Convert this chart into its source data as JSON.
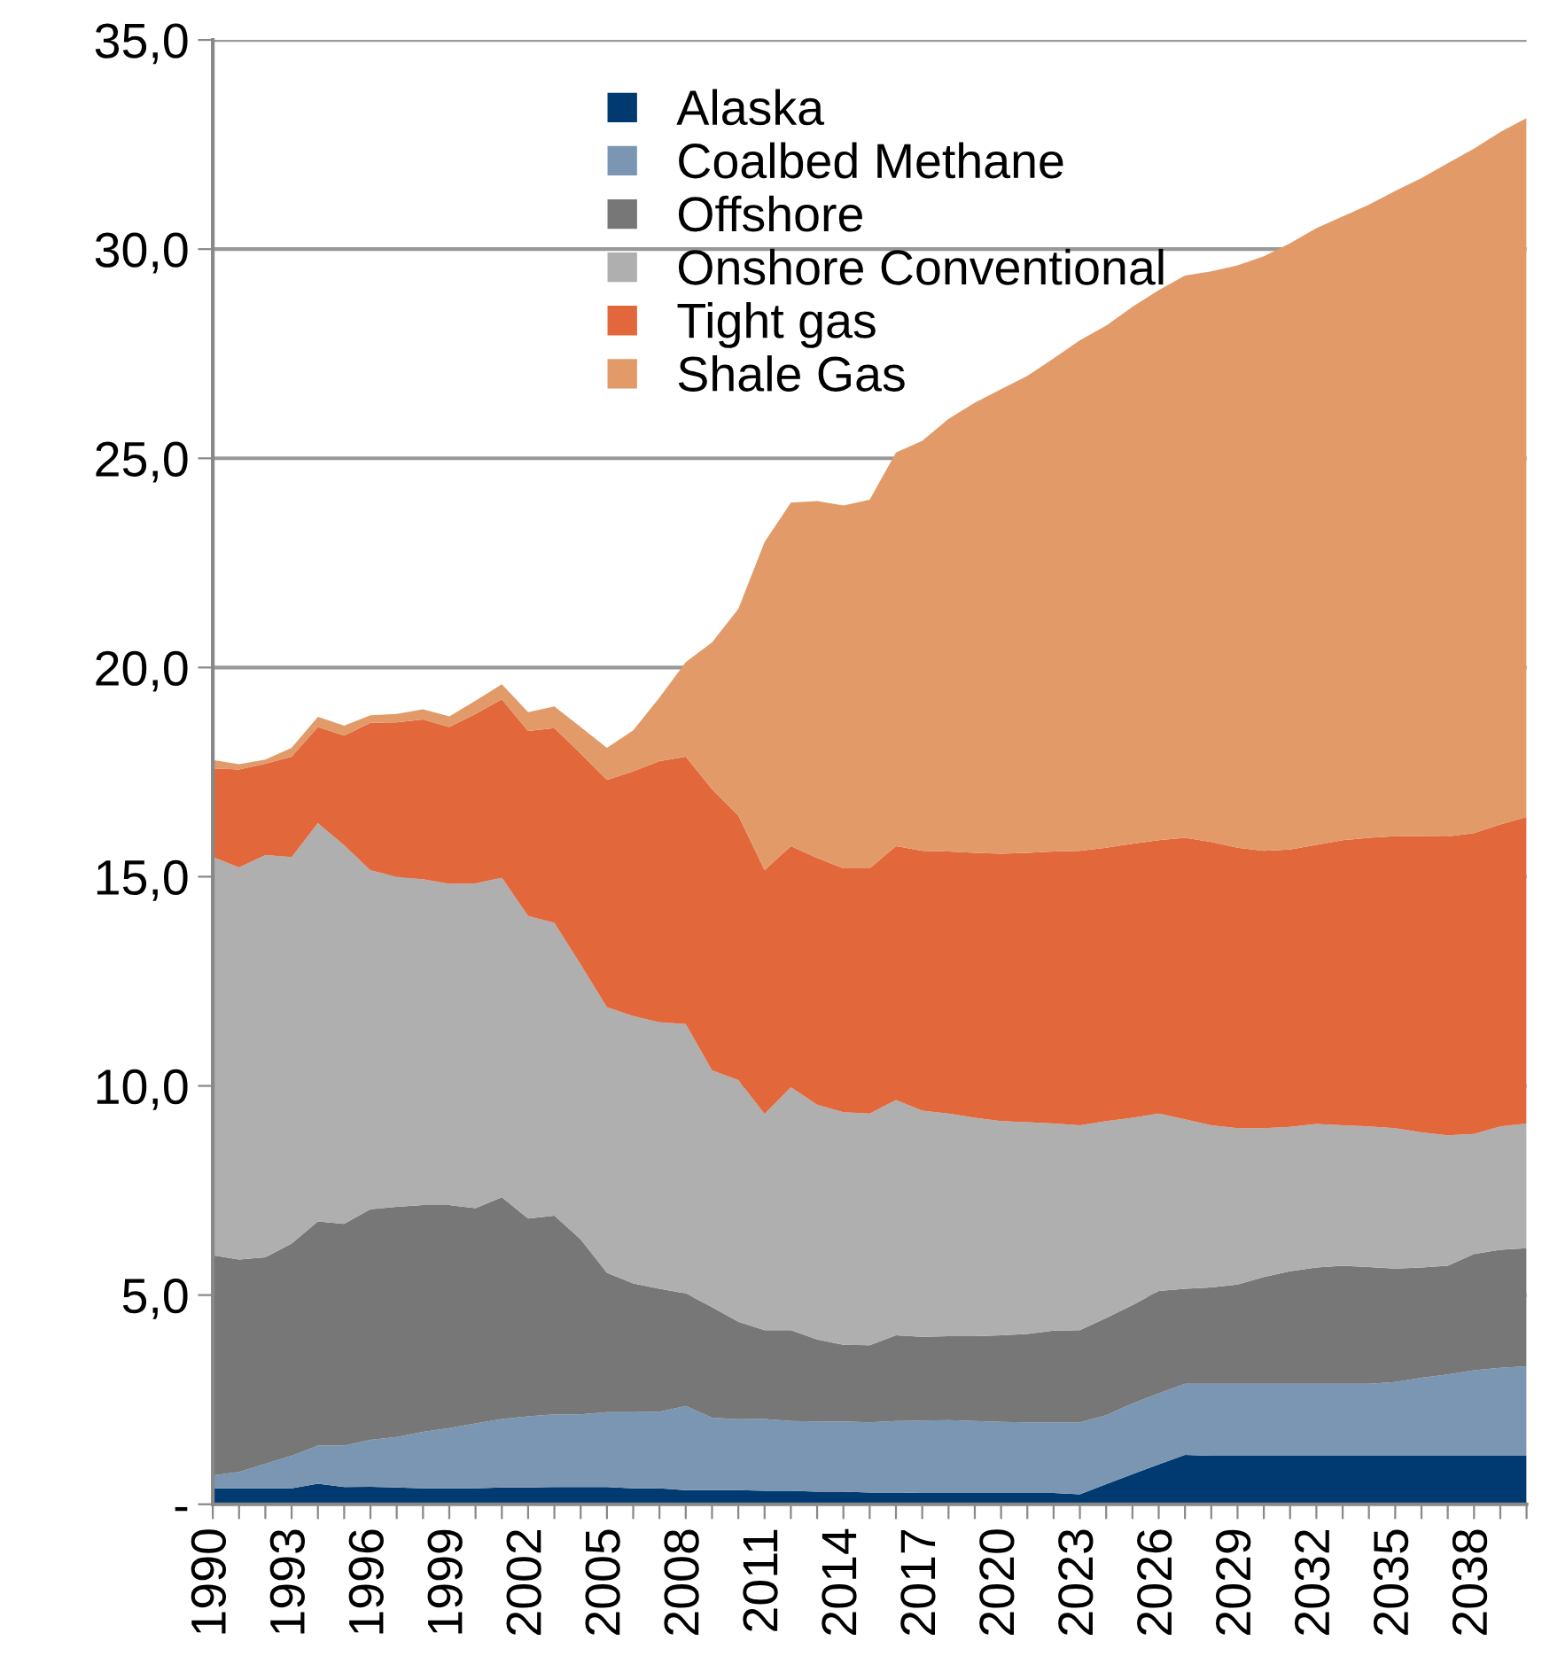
{
  "chart_data": {
    "type": "area",
    "stacked": true,
    "grid": "y",
    "legend": "top",
    "categories": [
      "1990",
      null,
      null,
      "1993",
      null,
      null,
      "1996",
      null,
      null,
      "1999",
      null,
      null,
      "2002",
      null,
      null,
      "2005",
      null,
      null,
      "2008",
      null,
      null,
      "2011",
      null,
      null,
      "2014",
      null,
      null,
      "2017",
      null,
      null,
      "2020",
      null,
      null,
      "2023",
      null,
      null,
      "2026",
      null,
      null,
      "2029",
      null,
      null,
      "2032",
      null,
      null,
      "2035",
      null,
      null,
      "2038",
      null,
      null
    ],
    "ylim": [
      0,
      35
    ],
    "yticks": [
      {
        "value": 0,
        "label": "-"
      },
      {
        "value": 5,
        "label": "5,0"
      },
      {
        "value": 10,
        "label": "10,0"
      },
      {
        "value": 15,
        "label": "15,0"
      },
      {
        "value": 20,
        "label": "20,0"
      },
      {
        "value": 25,
        "label": "25,0"
      },
      {
        "value": 30,
        "label": "30,0"
      },
      {
        "value": 35,
        "label": "35,0"
      }
    ],
    "series": [
      {
        "name": "Alaska",
        "color": "#003a70",
        "values": [
          0.38,
          0.38,
          0.38,
          0.38,
          0.49,
          0.41,
          0.42,
          0.4,
          0.38,
          0.38,
          0.38,
          0.4,
          0.4,
          0.41,
          0.41,
          0.41,
          0.38,
          0.38,
          0.34,
          0.34,
          0.34,
          0.32,
          0.32,
          0.3,
          0.3,
          0.28,
          0.28,
          0.27,
          0.27,
          0.27,
          0.27,
          0.27,
          0.27,
          0.24,
          0.48,
          0.72,
          0.95,
          1.18,
          1.16,
          1.16,
          1.16,
          1.16,
          1.16,
          1.16,
          1.16,
          1.16,
          1.16,
          1.16,
          1.16,
          1.16,
          1.16
        ]
      },
      {
        "name": "Coalbed Methane",
        "color": "#7b96b2",
        "values": [
          0.31,
          0.39,
          0.59,
          0.78,
          0.91,
          0.99,
          1.12,
          1.21,
          1.35,
          1.44,
          1.55,
          1.64,
          1.7,
          1.74,
          1.74,
          1.79,
          1.82,
          1.83,
          2.01,
          1.73,
          1.69,
          1.72,
          1.67,
          1.68,
          1.68,
          1.68,
          1.71,
          1.73,
          1.74,
          1.72,
          1.7,
          1.69,
          1.69,
          1.72,
          1.65,
          1.69,
          1.7,
          1.7,
          1.72,
          1.72,
          1.72,
          1.72,
          1.72,
          1.72,
          1.72,
          1.76,
          1.86,
          1.94,
          2.04,
          2.1,
          2.14
        ]
      },
      {
        "name": "Offshore",
        "color": "#777777",
        "values": [
          5.26,
          5.08,
          4.93,
          5.07,
          5.36,
          5.3,
          5.51,
          5.5,
          5.42,
          5.33,
          5.15,
          5.3,
          4.73,
          4.75,
          4.18,
          3.33,
          3.08,
          2.94,
          2.69,
          2.64,
          2.33,
          2.12,
          2.17,
          1.96,
          1.83,
          1.84,
          2.05,
          2.0,
          2.01,
          2.03,
          2.07,
          2.11,
          2.19,
          2.2,
          2.32,
          2.35,
          2.45,
          2.27,
          2.3,
          2.37,
          2.55,
          2.69,
          2.78,
          2.82,
          2.79,
          2.71,
          2.64,
          2.6,
          2.78,
          2.82,
          2.82
        ]
      },
      {
        "name": "Onshore Conventional",
        "color": "#afafaf",
        "values": [
          9.52,
          9.37,
          9.62,
          9.24,
          9.52,
          9.05,
          8.1,
          7.89,
          7.79,
          7.68,
          7.76,
          7.64,
          7.23,
          7.0,
          6.57,
          6.35,
          6.39,
          6.37,
          6.44,
          5.66,
          5.78,
          5.17,
          5.81,
          5.61,
          5.56,
          5.54,
          5.62,
          5.41,
          5.32,
          5.22,
          5.12,
          5.06,
          4.95,
          4.9,
          4.71,
          4.48,
          4.24,
          4.05,
          3.88,
          3.74,
          3.56,
          3.45,
          3.43,
          3.36,
          3.36,
          3.36,
          3.23,
          3.12,
          2.87,
          2.95,
          2.98
        ]
      },
      {
        "name": "Tight gas",
        "color": "#e2673a",
        "values": [
          2.12,
          2.34,
          2.18,
          2.4,
          2.3,
          2.62,
          3.53,
          3.69,
          3.82,
          3.75,
          4.05,
          4.26,
          4.42,
          4.65,
          5.04,
          5.43,
          5.85,
          6.24,
          6.39,
          6.72,
          6.32,
          5.83,
          5.76,
          5.9,
          5.83,
          5.86,
          6.07,
          6.21,
          6.26,
          6.33,
          6.39,
          6.44,
          6.5,
          6.56,
          6.53,
          6.55,
          6.53,
          6.73,
          6.77,
          6.7,
          6.63,
          6.63,
          6.67,
          6.81,
          6.9,
          6.98,
          7.08,
          7.14,
          7.19,
          7.22,
          7.33
        ]
      },
      {
        "name": "Shale Gas",
        "color": "#e29a68",
        "values": [
          0.2,
          0.13,
          0.1,
          0.21,
          0.24,
          0.24,
          0.18,
          0.2,
          0.24,
          0.25,
          0.32,
          0.36,
          0.45,
          0.52,
          0.64,
          0.77,
          0.98,
          1.52,
          2.26,
          3.51,
          4.94,
          7.84,
          8.21,
          8.53,
          8.67,
          8.81,
          9.41,
          9.8,
          10.34,
          10.76,
          11.1,
          11.4,
          11.79,
          12.2,
          12.48,
          12.83,
          13.15,
          13.44,
          13.64,
          13.92,
          14.21,
          14.49,
          14.74,
          14.91,
          15.13,
          15.42,
          15.73,
          16.09,
          16.36,
          16.55,
          16.7
        ]
      }
    ]
  }
}
